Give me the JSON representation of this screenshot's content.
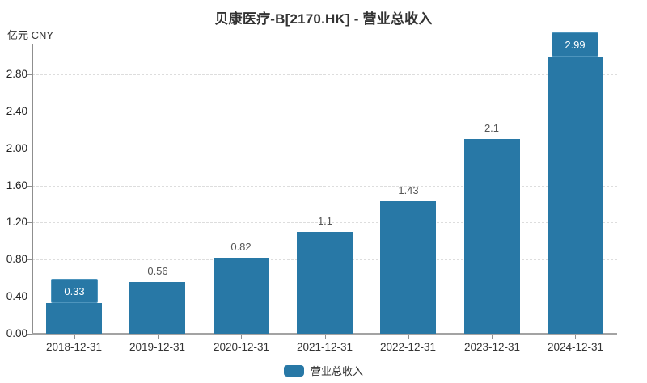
{
  "title": "贝康医疗-B[2170.HK] - 营业总收入",
  "unit_label": "亿元  CNY",
  "legend": {
    "label": "营业总收入",
    "swatch_color": "#2878a6"
  },
  "chart_data": {
    "type": "bar",
    "title": "贝康医疗-B[2170.HK] - 营业总收入",
    "ylabel": "亿元 CNY",
    "xlabel": "",
    "categories": [
      "2018-12-31",
      "2019-12-31",
      "2020-12-31",
      "2021-12-31",
      "2022-12-31",
      "2023-12-31",
      "2024-12-31"
    ],
    "series": [
      {
        "name": "营业总收入",
        "values": [
          0.33,
          0.56,
          0.82,
          1.1,
          1.43,
          2.1,
          2.99
        ]
      }
    ],
    "value_labels": [
      "0.33",
      "0.56",
      "0.82",
      "1.1",
      "1.43",
      "2.1",
      "2.99"
    ],
    "badge_label_indices": [
      0,
      6
    ],
    "y_tick_min": 0,
    "y_tick_max": 2.8,
    "y_tick_interval": 0.4,
    "ylim": [
      0,
      3.2
    ],
    "grid": true,
    "grid_style": "dashed",
    "legend_position": "bottom",
    "bar_color": "#2878a6",
    "badge_border_color": "#4e95bd",
    "grid_color": "#dddddd",
    "axis_color": "#8f8f8f"
  }
}
